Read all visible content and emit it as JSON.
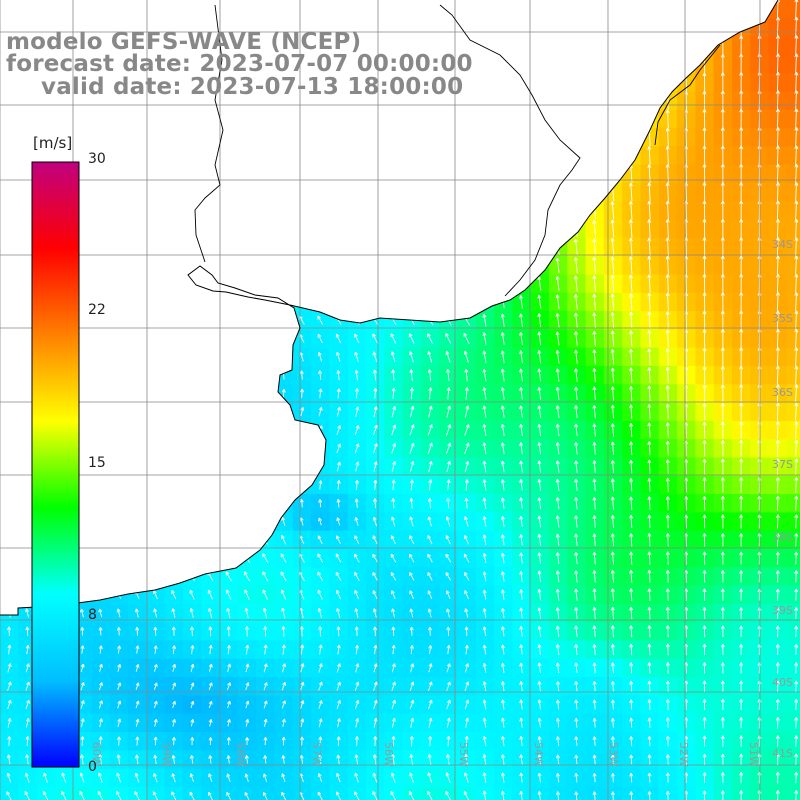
{
  "title": {
    "line1": "modelo GEFS-WAVE (NCEP)",
    "line2": "forecast date: 2023-07-07 00:00:00",
    "line3": "valid date: 2023-07-13 18:00:00"
  },
  "colorbar": {
    "unit_label": "[m/s]",
    "ticks": [
      "30",
      "22",
      "15",
      "8",
      "0"
    ],
    "tick_values": [
      30,
      22,
      15,
      8,
      0
    ],
    "range": [
      0,
      30
    ],
    "colors": [
      "#0000ff",
      "#00bfff",
      "#00ffff",
      "#00ff00",
      "#ffff00",
      "#ff8000",
      "#ff0000",
      "#c0007f"
    ]
  },
  "axes": {
    "lon_labels": [
      "60W",
      "59W",
      "58W",
      "57W",
      "56W",
      "55W",
      "54W",
      "53W",
      "52W",
      "51W"
    ],
    "lat_labels": [
      "34S",
      "35S",
      "36S",
      "37S",
      "38S",
      "39S",
      "40S",
      "41S"
    ],
    "lon_range": [
      -61,
      -50
    ],
    "lat_range": [
      -41.5,
      -30.2
    ],
    "grid": true
  },
  "field": {
    "variable": "wind speed",
    "units": "m/s",
    "vectors": true,
    "land_color": "#ffffff",
    "coastline_color": "#000000"
  }
}
